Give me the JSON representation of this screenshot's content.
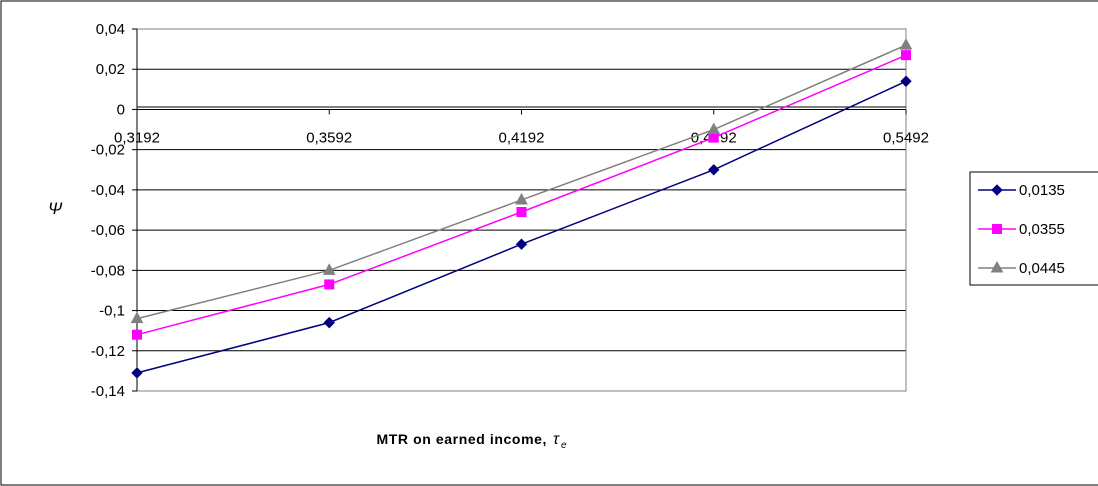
{
  "chart_data": {
    "type": "line",
    "title": "",
    "xlabel": "MTR on earned income,",
    "xlabel_symbol": "τ",
    "xlabel_subscript": "e",
    "ylabel": "Ψ",
    "categories": [
      "0,3192",
      "0,3592",
      "0,4192",
      "0,4792",
      "0,5492"
    ],
    "ylim": [
      -0.14,
      0.04
    ],
    "yticks": [
      0.04,
      0.02,
      0,
      -0.02,
      -0.04,
      -0.06,
      -0.08,
      -0.1,
      -0.12,
      -0.14
    ],
    "ytick_labels": [
      "0,04",
      "0,02",
      "0",
      "-0,02",
      "-0,04",
      "-0,06",
      "-0,08",
      "-0,1",
      "-0,12",
      "-0,14"
    ],
    "grid": true,
    "legend_position": "right",
    "series": [
      {
        "name": "0,0135",
        "color": "#000080",
        "marker": "diamond",
        "values": [
          -0.131,
          -0.106,
          -0.067,
          -0.03,
          0.014
        ]
      },
      {
        "name": "0,0355",
        "color": "#ff00ff",
        "marker": "square",
        "values": [
          -0.112,
          -0.087,
          -0.051,
          -0.014,
          0.027
        ]
      },
      {
        "name": "0,0445",
        "color": "#808080",
        "marker": "triangle",
        "values": [
          -0.104,
          -0.08,
          -0.045,
          -0.01,
          0.032
        ]
      }
    ]
  }
}
